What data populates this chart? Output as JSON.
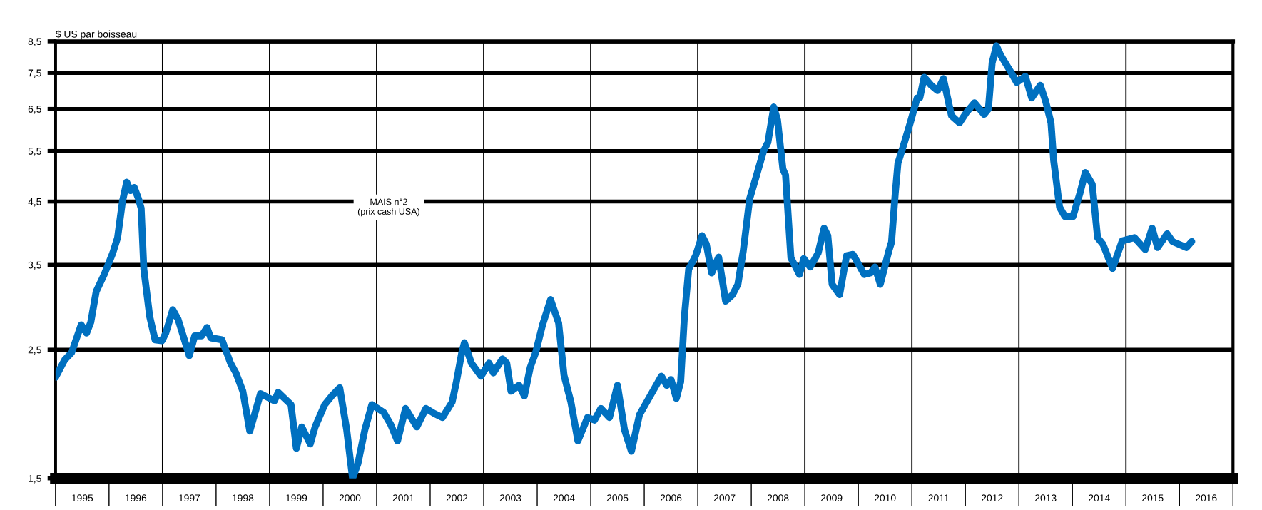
{
  "chart_data": {
    "type": "line",
    "ylabel": "$ US par boisseau",
    "annotations": [
      "MAIS n°2\n(prix cash USA)"
    ],
    "log": "y",
    "grid": "y",
    "marker": "none",
    "line_style": "solid",
    "xlim": [
      1995,
      2017
    ],
    "ylim": [
      1.5,
      8.5
    ],
    "yticks": [
      {
        "value": 1.5,
        "label": "1,5"
      },
      {
        "value": 2.5,
        "label": "2,5"
      },
      {
        "value": 3.5,
        "label": "3,5"
      },
      {
        "value": 4.5,
        "label": "4,5"
      },
      {
        "value": 5.5,
        "label": "5,5"
      },
      {
        "value": 6.5,
        "label": "6,5"
      },
      {
        "value": 7.5,
        "label": "7,5"
      },
      {
        "value": 8.5,
        "label": "8,5"
      }
    ],
    "xticks": [
      {
        "value": 1995.5,
        "label": "1995"
      },
      {
        "value": 1996.5,
        "label": "1996"
      },
      {
        "value": 1997.5,
        "label": "1997"
      },
      {
        "value": 1998.5,
        "label": "1998"
      },
      {
        "value": 1999.5,
        "label": "1999"
      },
      {
        "value": 2000.5,
        "label": "2000"
      },
      {
        "value": 2001.5,
        "label": "2001"
      },
      {
        "value": 2002.5,
        "label": "2002"
      },
      {
        "value": 2003.5,
        "label": "2003"
      },
      {
        "value": 2004.5,
        "label": "2004"
      },
      {
        "value": 2005.5,
        "label": "2005"
      },
      {
        "value": 2006.5,
        "label": "2006"
      },
      {
        "value": 2007.5,
        "label": "2007"
      },
      {
        "value": 2008.5,
        "label": "2008"
      },
      {
        "value": 2009.5,
        "label": "2009"
      },
      {
        "value": 2010.5,
        "label": "2010"
      },
      {
        "value": 2011.5,
        "label": "2011"
      },
      {
        "value": 2012.5,
        "label": "2012"
      },
      {
        "value": 2013.5,
        "label": "2013"
      },
      {
        "value": 2014.5,
        "label": "2014"
      },
      {
        "value": 2015.5,
        "label": "2015"
      },
      {
        "value": 2016.5,
        "label": "2016"
      }
    ],
    "ref_lines": [
      {
        "axis": "x",
        "value": 1997,
        "color": "#000000"
      },
      {
        "axis": "x",
        "value": 1999,
        "color": "#000000"
      },
      {
        "axis": "x",
        "value": 2001,
        "color": "#000000"
      },
      {
        "axis": "x",
        "value": 2003,
        "color": "#000000"
      },
      {
        "axis": "x",
        "value": 2005,
        "color": "#000000"
      },
      {
        "axis": "x",
        "value": 2007,
        "color": "#000000"
      },
      {
        "axis": "x",
        "value": 2009,
        "color": "#000000"
      },
      {
        "axis": "x",
        "value": 2011,
        "color": "#000000"
      },
      {
        "axis": "x",
        "value": 2013,
        "color": "#000000"
      },
      {
        "axis": "x",
        "value": 2015,
        "color": "#000000"
      }
    ],
    "series": [
      {
        "color": "#0070c0",
        "x": [
          1995.0,
          1995.17,
          1995.3,
          1995.48,
          1995.58,
          1995.66,
          1995.76,
          1995.91,
          1996.07,
          1996.16,
          1996.25,
          1996.33,
          1996.4,
          1996.47,
          1996.55,
          1996.6,
          1996.65,
          1996.76,
          1996.86,
          1996.99,
          1997.06,
          1997.19,
          1997.29,
          1997.5,
          1997.6,
          1997.73,
          1997.83,
          1997.9,
          1998.11,
          1998.27,
          1998.37,
          1998.5,
          1998.63,
          1998.83,
          1999.09,
          1999.16,
          1999.4,
          1999.5,
          1999.6,
          1999.76,
          1999.85,
          2000.03,
          2000.16,
          2000.31,
          2000.44,
          2000.55,
          2000.65,
          2000.78,
          2000.91,
          2001.13,
          2001.26,
          2001.39,
          2001.54,
          2001.75,
          2001.92,
          2002.08,
          2002.23,
          2002.41,
          2002.49,
          2002.59,
          2002.64,
          2002.77,
          2002.95,
          2003.1,
          2003.18,
          2003.35,
          2003.43,
          2003.51,
          2003.66,
          2003.76,
          2003.87,
          2003.97,
          2004.1,
          2004.25,
          2004.4,
          2004.5,
          2004.63,
          2004.76,
          2004.94,
          2005.07,
          2005.19,
          2005.35,
          2005.5,
          2005.63,
          2005.76,
          2005.91,
          2006.11,
          2006.32,
          2006.42,
          2006.5,
          2006.6,
          2006.68,
          2006.75,
          2006.83,
          2006.96,
          2007.08,
          2007.16,
          2007.26,
          2007.39,
          2007.52,
          2007.65,
          2007.75,
          2007.85,
          2007.97,
          2008.1,
          2008.23,
          2008.31,
          2008.42,
          2008.49,
          2008.59,
          2008.64,
          2008.74,
          2008.9,
          2008.98,
          2009.1,
          2009.25,
          2009.36,
          2009.43,
          2009.51,
          2009.65,
          2009.78,
          2009.9,
          2010.11,
          2010.23,
          2010.31,
          2010.41,
          2010.57,
          2010.62,
          2010.69,
          2010.74,
          2010.82,
          2010.97,
          2011.1,
          2011.15,
          2011.23,
          2011.36,
          2011.48,
          2011.59,
          2011.74,
          2011.89,
          2012.02,
          2012.17,
          2012.35,
          2012.43,
          2012.5,
          2012.58,
          2012.66,
          2012.84,
          2012.96,
          2013.12,
          2013.24,
          2013.4,
          2013.5,
          2013.6,
          2013.65,
          2013.76,
          2013.86,
          2014.01,
          2014.14,
          2014.24,
          2014.37,
          2014.47,
          2014.57,
          2014.75,
          2014.93,
          2015.16,
          2015.36,
          2015.49,
          2015.59,
          2015.77,
          2015.87,
          2016.13,
          2016.23
        ],
        "values": [
          2.24,
          2.4,
          2.47,
          2.76,
          2.67,
          2.79,
          3.15,
          3.37,
          3.67,
          3.9,
          4.5,
          4.86,
          4.7,
          4.76,
          4.55,
          4.38,
          3.44,
          2.85,
          2.6,
          2.59,
          2.67,
          2.93,
          2.82,
          2.44,
          2.64,
          2.64,
          2.73,
          2.62,
          2.6,
          2.37,
          2.28,
          2.12,
          1.81,
          2.1,
          2.04,
          2.11,
          2.01,
          1.69,
          1.84,
          1.72,
          1.84,
          2.01,
          2.08,
          2.15,
          1.82,
          1.5,
          1.59,
          1.82,
          2.01,
          1.95,
          1.86,
          1.74,
          1.98,
          1.84,
          1.98,
          1.94,
          1.91,
          2.03,
          2.2,
          2.47,
          2.57,
          2.37,
          2.25,
          2.37,
          2.28,
          2.41,
          2.37,
          2.12,
          2.17,
          2.08,
          2.33,
          2.47,
          2.76,
          3.05,
          2.78,
          2.26,
          2.03,
          1.74,
          1.91,
          1.89,
          1.98,
          1.91,
          2.17,
          1.82,
          1.67,
          1.93,
          2.08,
          2.25,
          2.17,
          2.22,
          2.06,
          2.2,
          2.85,
          3.44,
          3.63,
          3.93,
          3.8,
          3.39,
          3.61,
          3.03,
          3.11,
          3.24,
          3.7,
          4.55,
          5.0,
          5.5,
          5.69,
          6.55,
          6.22,
          5.12,
          5.0,
          3.6,
          3.37,
          3.59,
          3.47,
          3.67,
          4.05,
          3.93,
          3.24,
          3.11,
          3.63,
          3.65,
          3.37,
          3.39,
          3.47,
          3.24,
          3.7,
          3.83,
          4.65,
          5.24,
          5.53,
          6.15,
          6.79,
          6.8,
          7.37,
          7.14,
          6.99,
          7.33,
          6.33,
          6.15,
          6.41,
          6.66,
          6.36,
          6.5,
          7.8,
          8.35,
          8.04,
          7.55,
          7.22,
          7.4,
          6.79,
          7.14,
          6.7,
          6.15,
          5.3,
          4.4,
          4.24,
          4.24,
          4.65,
          5.05,
          4.82,
          3.9,
          3.8,
          3.45,
          3.85,
          3.9,
          3.72,
          4.05,
          3.75,
          3.96,
          3.84,
          3.75,
          3.84
        ]
      }
    ]
  }
}
